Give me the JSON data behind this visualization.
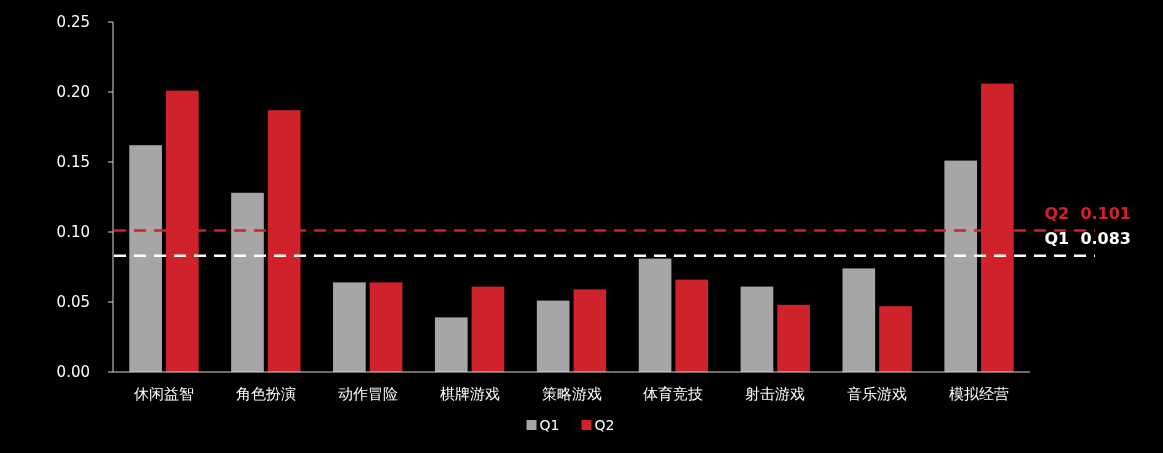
{
  "chart_data": {
    "type": "bar",
    "categories": [
      "休闲益智",
      "角色扮演",
      "动作冒险",
      "棋牌游戏",
      "策略游戏",
      "体育竞技",
      "射击游戏",
      "音乐游戏",
      "模拟经营"
    ],
    "series": [
      {
        "name": "Q1",
        "color": "#a6a6a6",
        "values": [
          0.162,
          0.128,
          0.064,
          0.039,
          0.051,
          0.081,
          0.061,
          0.074,
          0.151
        ]
      },
      {
        "name": "Q2",
        "color": "#d0222a",
        "values": [
          0.201,
          0.187,
          0.064,
          0.061,
          0.059,
          0.066,
          0.048,
          0.047,
          0.206
        ]
      }
    ],
    "ylim": [
      0,
      0.25
    ],
    "yticks": [
      {
        "value": 0,
        "label": "0.00"
      },
      {
        "value": 0.05,
        "label": "0.05"
      },
      {
        "value": 0.1,
        "label": "0.10"
      },
      {
        "value": 0.15,
        "label": "0.15"
      },
      {
        "value": 0.2,
        "label": "0.20"
      },
      {
        "value": 0.25,
        "label": "0.25"
      }
    ],
    "ref_lines": [
      {
        "axis": "y",
        "value": 0.101,
        "label": "Q2  0.101",
        "color": "#d0222a",
        "line_style": "dashed"
      },
      {
        "axis": "y",
        "value": 0.083,
        "label": "Q1  0.083",
        "color": "#ffffff",
        "line_style": "dashed"
      }
    ],
    "grid": false,
    "legend": "bottom"
  }
}
